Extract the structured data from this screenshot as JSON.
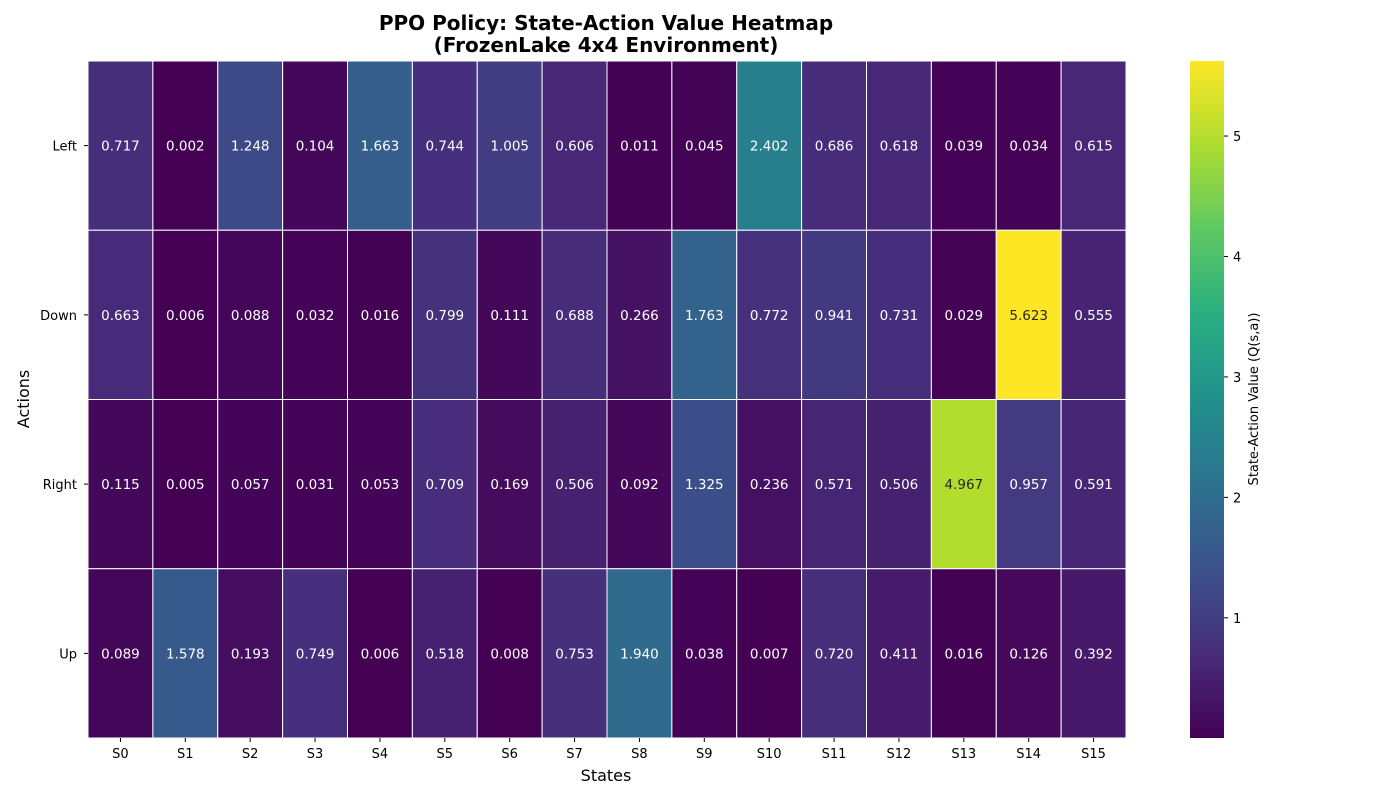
{
  "chart_data": {
    "type": "heatmap",
    "title_line1": "PPO Policy: State-Action Value Heatmap",
    "title_line2": "(FrozenLake 4x4 Environment)",
    "xlabel": "States",
    "ylabel": "Actions",
    "colorbar_label": "State-Action Value (Q(s,a))",
    "colormap": "viridis",
    "colorbar_range": [
      0.002,
      5.623
    ],
    "colorbar_ticks": [
      "1",
      "2",
      "3",
      "4",
      "5"
    ],
    "x_categories": [
      "S0",
      "S1",
      "S2",
      "S3",
      "S4",
      "S5",
      "S6",
      "S7",
      "S8",
      "S9",
      "S10",
      "S11",
      "S12",
      "S13",
      "S14",
      "S15"
    ],
    "y_categories": [
      "Left",
      "Down",
      "Right",
      "Up"
    ],
    "values": [
      [
        "0.717",
        "0.002",
        "1.248",
        "0.104",
        "1.663",
        "0.744",
        "1.005",
        "0.606",
        "0.011",
        "0.045",
        "2.402",
        "0.686",
        "0.618",
        "0.039",
        "0.034",
        "0.615"
      ],
      [
        "0.663",
        "0.006",
        "0.088",
        "0.032",
        "0.016",
        "0.799",
        "0.111",
        "0.688",
        "0.266",
        "1.763",
        "0.772",
        "0.941",
        "0.731",
        "0.029",
        "5.623",
        "0.555"
      ],
      [
        "0.115",
        "0.005",
        "0.057",
        "0.031",
        "0.053",
        "0.709",
        "0.169",
        "0.506",
        "0.092",
        "1.325",
        "0.236",
        "0.571",
        "0.506",
        "4.967",
        "0.957",
        "0.591"
      ],
      [
        "0.089",
        "1.578",
        "0.193",
        "0.749",
        "0.006",
        "0.518",
        "0.008",
        "0.753",
        "1.940",
        "0.038",
        "0.007",
        "0.720",
        "0.411",
        "0.016",
        "0.126",
        "0.392"
      ]
    ]
  }
}
